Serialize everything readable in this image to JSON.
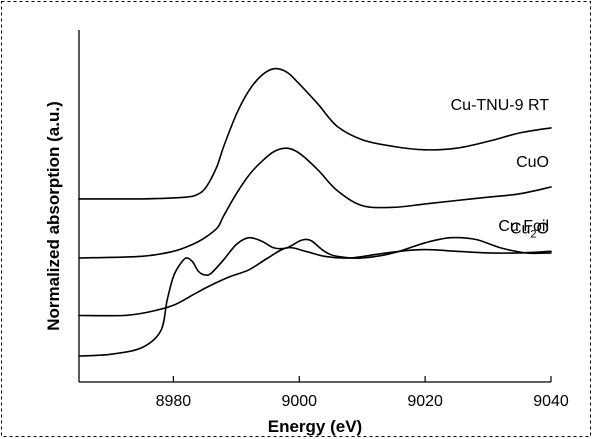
{
  "chart_data": {
    "type": "line",
    "xlabel": "Energy (eV)",
    "ylabel": "Normalized absorption (a.u.)",
    "xlim": [
      8965,
      9040
    ],
    "ylim": [
      0,
      10
    ],
    "xticks": [
      8980,
      9000,
      9020,
      9040
    ],
    "y_ticks_shown": false,
    "grid": false,
    "series": [
      {
        "name": "Cu-TNU-9 RT",
        "label_parts": [
          "Cu-TNU-9 RT"
        ],
        "x": [
          8965,
          8975,
          8982,
          8984,
          8985,
          8986,
          8987,
          8988,
          8990,
          8992,
          8994,
          8996,
          8998,
          9000,
          9003,
          9006,
          9010,
          9015,
          9020,
          9025,
          9030,
          9035,
          9040
        ],
        "y": [
          5.3,
          5.3,
          5.35,
          5.45,
          5.6,
          5.9,
          6.3,
          6.85,
          7.8,
          8.5,
          8.95,
          9.15,
          9.05,
          8.7,
          8.1,
          7.45,
          7.05,
          6.85,
          6.75,
          6.8,
          7.0,
          7.25,
          7.4
        ]
      },
      {
        "name": "CuO",
        "label_parts": [
          "CuO"
        ],
        "x": [
          8965,
          8975,
          8980,
          8983,
          8985,
          8987,
          8988,
          8990,
          8992,
          8994,
          8996,
          8998,
          9000,
          9003,
          9006,
          9010,
          9015,
          9020,
          9025,
          9030,
          9035,
          9040
        ],
        "y": [
          3.55,
          3.6,
          3.75,
          3.95,
          4.15,
          4.45,
          4.8,
          5.45,
          6.0,
          6.4,
          6.7,
          6.8,
          6.65,
          6.15,
          5.55,
          5.1,
          5.05,
          5.15,
          5.25,
          5.35,
          5.45,
          5.65
        ]
      },
      {
        "name": "Cu2O",
        "label_parts": [
          "Cu",
          "2",
          "O"
        ],
        "x": [
          8965,
          8972,
          8976,
          8980,
          8983,
          8986,
          8989,
          8992,
          8995,
          8998,
          9001,
          9004,
          9008,
          9012,
          9016,
          9020,
          9025,
          9030,
          9035,
          9040
        ],
        "y": [
          1.85,
          1.85,
          1.95,
          2.15,
          2.45,
          2.75,
          3.0,
          3.2,
          3.55,
          3.85,
          3.75,
          3.6,
          3.55,
          3.65,
          3.75,
          3.8,
          3.75,
          3.7,
          3.7,
          3.75
        ]
      },
      {
        "name": "Cu Foil",
        "label_parts": [
          "Cu Foil"
        ],
        "x": [
          8965,
          8970,
          8975,
          8978,
          8979,
          8980,
          8981,
          8982,
          8983,
          8984,
          8985,
          8986,
          8988,
          8990,
          8992,
          8994,
          8996,
          8998,
          9000,
          9001,
          9002,
          9004,
          9006,
          9010,
          9015,
          9020,
          9024,
          9028,
          9032,
          9036,
          9040
        ],
        "y": [
          0.65,
          0.7,
          0.9,
          1.4,
          2.3,
          3.0,
          3.35,
          3.55,
          3.45,
          3.15,
          3.05,
          3.1,
          3.5,
          3.95,
          4.15,
          4.05,
          3.85,
          3.85,
          4.05,
          4.1,
          4.05,
          3.75,
          3.6,
          3.55,
          3.7,
          4.0,
          4.15,
          4.1,
          3.85,
          3.7,
          3.7
        ]
      }
    ],
    "series_note": "Curves are vertically offset (stacked) for comparison; y-axis has no tick labels."
  }
}
